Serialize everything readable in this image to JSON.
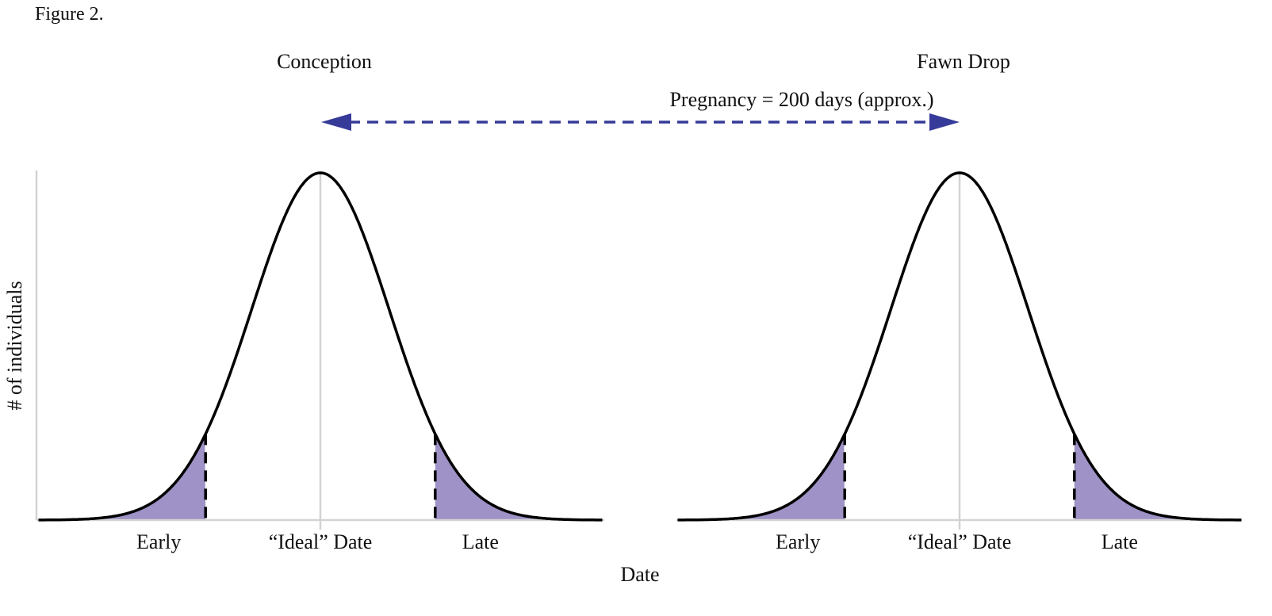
{
  "figure_label": "Figure 2.",
  "arrow": {
    "label": "Pregnancy = 200 days (approx.)",
    "color": "#363b99"
  },
  "ylabel": "# of individuals",
  "xlabel": "Date",
  "colors": {
    "curve": "#000000",
    "shade": "#9f92c6",
    "axis": "#d3d3d3",
    "threshold": "#000000"
  },
  "chart_data": {
    "type": "area",
    "title": "Figure 2.",
    "xlabel": "Date",
    "ylabel": "# of individuals",
    "distribution": "normal",
    "mean": 0,
    "sd": 1,
    "early_threshold_sd": -1.67,
    "late_threshold_sd": 1.67,
    "x_range_sd": [
      -4.1,
      4.1
    ],
    "panels": [
      {
        "title": "Conception",
        "tick_labels": [
          "Early",
          "“Ideal” Date",
          "Late"
        ]
      },
      {
        "title": "Fawn Drop",
        "tick_labels": [
          "Early",
          "“Ideal” Date",
          "Late"
        ]
      }
    ]
  }
}
